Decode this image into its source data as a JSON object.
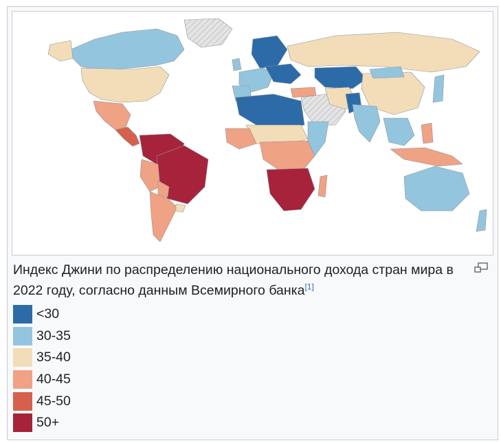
{
  "caption": {
    "text": "Индекс Джини по распределению национального дохода стран мира в 2022 году, согласно данным Всемирного банка",
    "ref": "[1]"
  },
  "legend": [
    {
      "label": "<30",
      "color": "#2c6ba8"
    },
    {
      "label": "30-35",
      "color": "#94c5de"
    },
    {
      "label": "35-40",
      "color": "#f2ddb8"
    },
    {
      "label": "40-45",
      "color": "#f0a284"
    },
    {
      "label": "45-50",
      "color": "#d6604d"
    },
    {
      "label": "50+",
      "color": "#a7233b"
    }
  ],
  "map": {
    "nodata_color": "#dcdcdc",
    "ocean_color": "#ffffff",
    "border_color": "#9aa0a6"
  },
  "icons": {
    "enlarge": "magnify-icon"
  }
}
